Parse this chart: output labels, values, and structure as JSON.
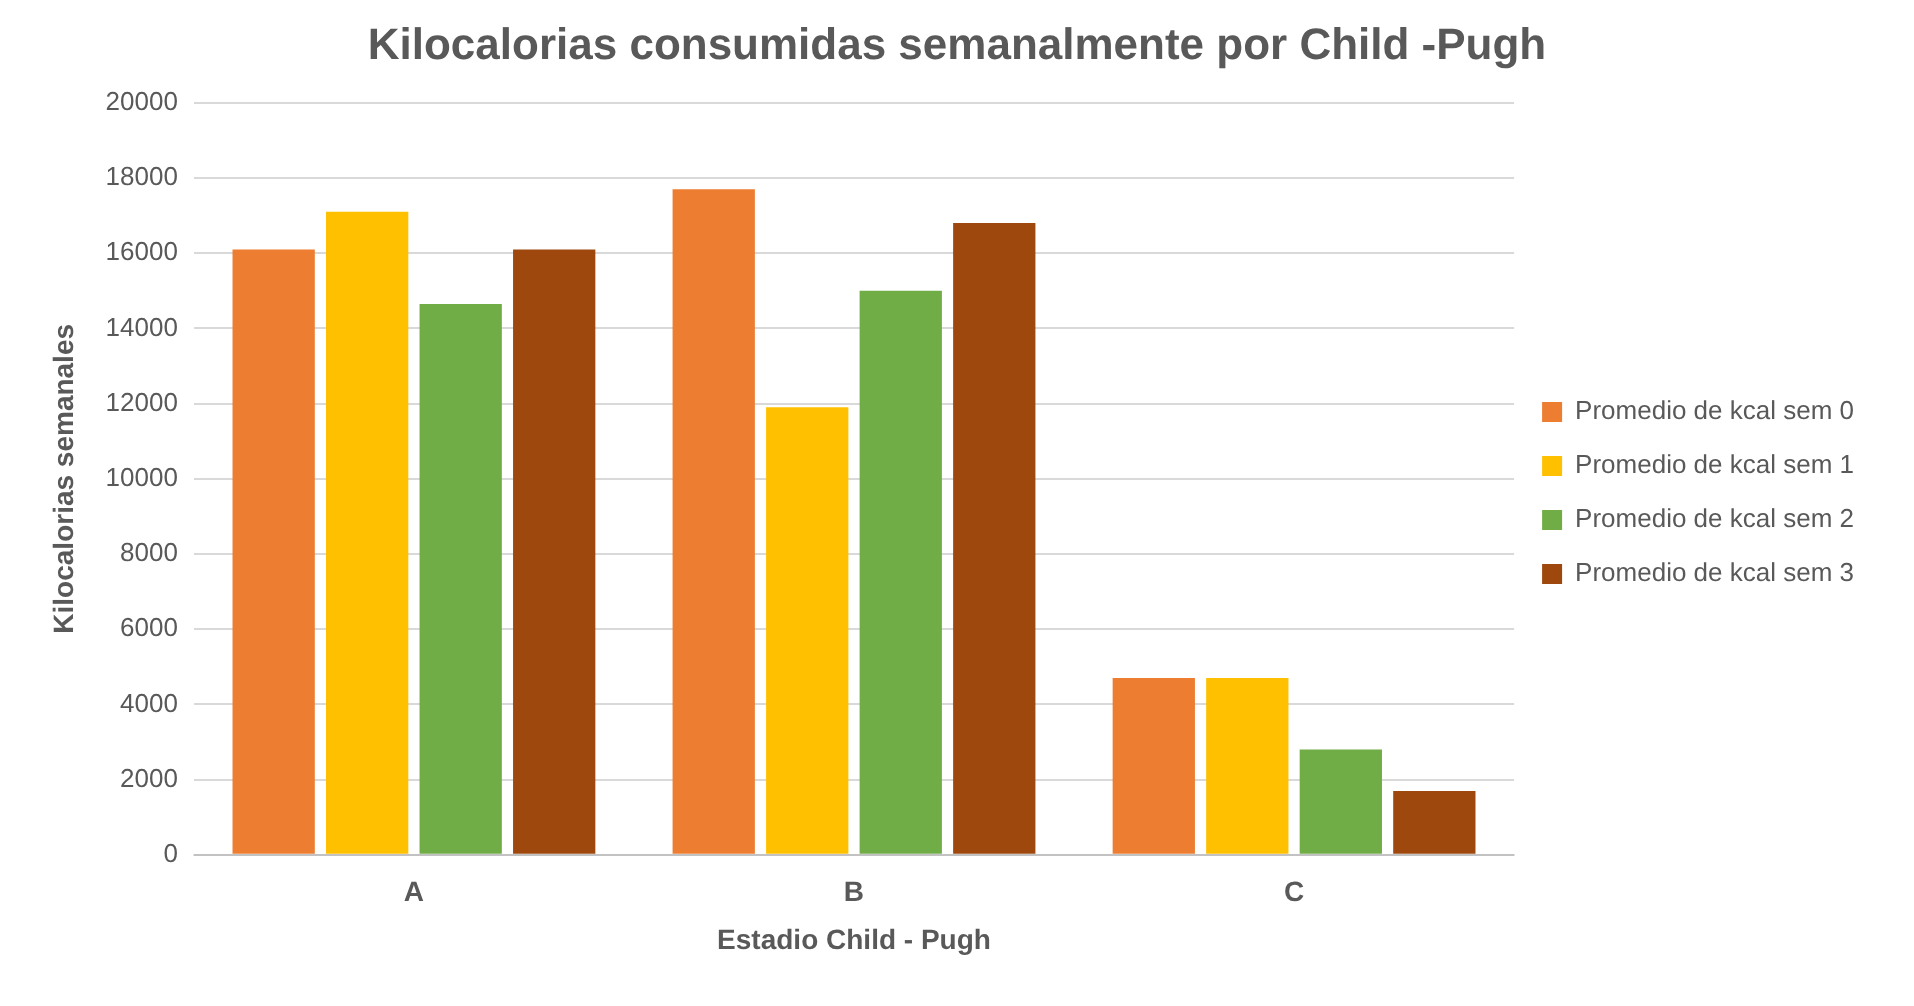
{
  "chart_data": {
    "type": "bar",
    "title": "Kilocalorias consumidas semanalmente por Child -Pugh",
    "xlabel": "Estadio Child - Pugh",
    "ylabel": "Kilocalorias semanales",
    "categories": [
      "A",
      "B",
      "C"
    ],
    "series": [
      {
        "name": "Promedio de kcal sem 0",
        "color": "#ed7d31",
        "values": [
          16100,
          17700,
          4700
        ]
      },
      {
        "name": "Promedio de kcal sem 1",
        "color": "#ffc000",
        "values": [
          17100,
          11900,
          4700
        ]
      },
      {
        "name": "Promedio de kcal sem 2",
        "color": "#70ad47",
        "values": [
          14650,
          15000,
          2800
        ]
      },
      {
        "name": "Promedio de kcal sem 3",
        "color": "#9e480e",
        "values": [
          16100,
          16800,
          1700
        ]
      }
    ],
    "ylim": [
      0,
      20000
    ],
    "yticks": [
      0,
      2000,
      4000,
      6000,
      8000,
      10000,
      12000,
      14000,
      16000,
      18000,
      20000
    ],
    "grid": "y",
    "legend": "right"
  }
}
